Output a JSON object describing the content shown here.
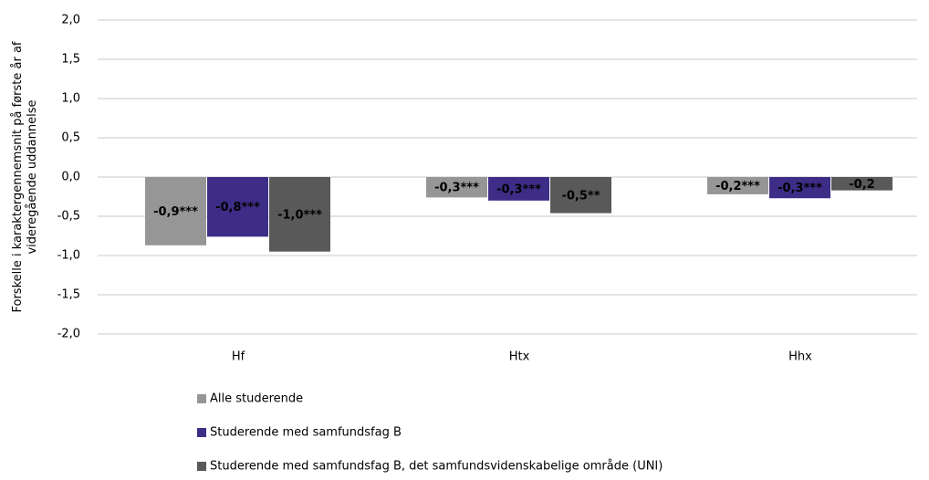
{
  "chart_data": {
    "type": "bar",
    "ylabel": "Forskelle i karaktergennemsnit på første år af videregående uddannelse",
    "categories": [
      "Hf",
      "Htx",
      "Hhx"
    ],
    "series": [
      {
        "name": "Alle studerende",
        "color": "#969696",
        "values": [
          -0.87,
          -0.26,
          -0.22
        ],
        "value_labels": [
          "-0,9***",
          "-0,3***",
          "-0,2***"
        ]
      },
      {
        "name": "Studerende med samfundsfag B",
        "color": "#3e2d86",
        "values": [
          -0.76,
          -0.3,
          -0.27
        ],
        "value_labels": [
          "-0,8***",
          "-0,3***",
          "-0,3***"
        ]
      },
      {
        "name": "Studerende med samfundsfag B, det samfundsvidenskabelige område (UNI)",
        "color": "#595959",
        "values": [
          -0.95,
          -0.46,
          -0.17
        ],
        "value_labels": [
          "-1,0***",
          "-0,5**",
          "-0,2"
        ]
      }
    ],
    "ylim": [
      -2,
      2
    ],
    "yticks": [
      {
        "value": -2,
        "label": "-2,0"
      },
      {
        "value": -1.5,
        "label": "-1,5"
      },
      {
        "value": -1,
        "label": "-1,0"
      },
      {
        "value": -0.5,
        "label": "-0,5"
      },
      {
        "value": 0,
        "label": "0,0"
      },
      {
        "value": 0.5,
        "label": "0,5"
      },
      {
        "value": 1,
        "label": "1,0"
      },
      {
        "value": 1.5,
        "label": "1,5"
      },
      {
        "value": 2,
        "label": "2,0"
      }
    ],
    "grid": true,
    "legend": "bottom"
  }
}
